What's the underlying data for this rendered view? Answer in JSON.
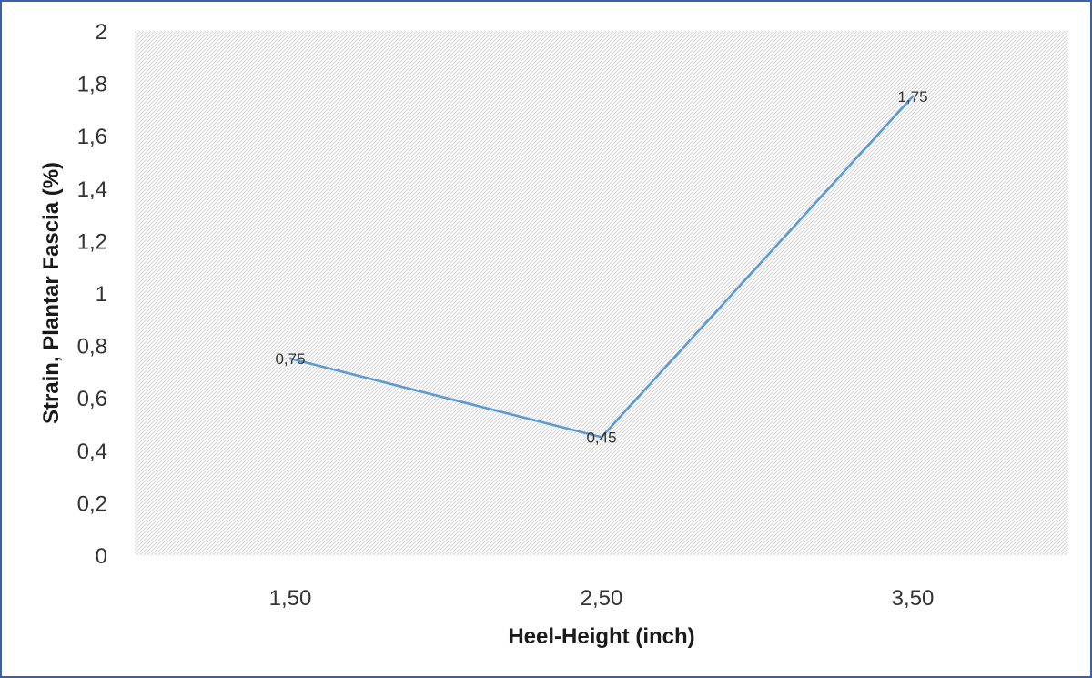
{
  "chart_data": {
    "type": "line",
    "title": "",
    "xlabel": "Heel-Height (inch)",
    "ylabel": "Strain, Plantar Fascia (%)",
    "categories": [
      "1,50",
      "2,50",
      "3,50"
    ],
    "series": [
      {
        "values": [
          0.75,
          0.45,
          1.75
        ],
        "color": "#5b9bd5",
        "data_labels": [
          "0,75",
          "0,45",
          "1,75"
        ]
      }
    ],
    "ylim": [
      0,
      2
    ],
    "y_ticks": [
      0,
      0.2,
      0.4,
      0.6,
      0.8,
      1,
      1.2,
      1.4,
      1.6,
      1.8,
      2
    ],
    "y_tick_labels": [
      "0",
      "0,2",
      "0,4",
      "0,6",
      "0,8",
      "1",
      "1,2",
      "1,4",
      "1,6",
      "1,8",
      "2"
    ],
    "grid": false,
    "plot_fill": "hatched light gray",
    "legend": "none"
  },
  "colors": {
    "frame": "#3b5fa0",
    "line": "#5b9bd5",
    "hatch": "#d4d4d4"
  }
}
